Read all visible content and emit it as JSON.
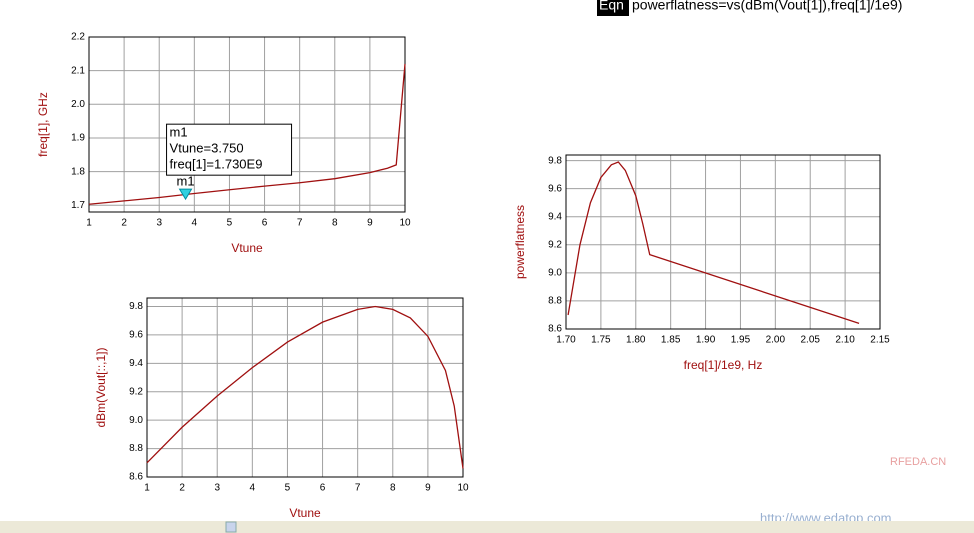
{
  "equation": {
    "tag": "Eqn",
    "text": "powerflatness=vs(dBm(Vout[1]),freq[1]/1e9)"
  },
  "watermark": [
    "RFEDA.CN",
    "http://www.edatop.com"
  ],
  "chart_data": [
    {
      "type": "line",
      "x_label": "Vtune",
      "y_label": "freq[1], GHz",
      "color": "#a01010",
      "grid": true,
      "x": [
        1,
        2,
        3,
        4,
        5,
        6,
        7,
        8,
        9,
        9.5,
        9.75,
        10
      ],
      "values": [
        1.703,
        1.713,
        1.723,
        1.735,
        1.746,
        1.757,
        1.767,
        1.779,
        1.797,
        1.81,
        1.82,
        2.12
      ],
      "xlim": [
        1,
        10
      ],
      "xticks": [
        1,
        2,
        3,
        4,
        5,
        6,
        7,
        8,
        9,
        10
      ],
      "ylim": [
        1.68,
        2.2
      ],
      "yticks": [
        1.7,
        1.8,
        1.9,
        {
          "value": 2,
          "label": "2.0"
        },
        2.1,
        2.2
      ],
      "marker": {
        "label": "m1",
        "readout": [
          "Vtune=3.750",
          "freq[1]=1.730E9"
        ],
        "x": 3.75,
        "y": 1.73
      }
    },
    {
      "type": "line",
      "x_label": "Vtune",
      "y_label": "dBm(Vout[::,1])",
      "color": "#a01010",
      "grid": true,
      "x": [
        1,
        2,
        3,
        4,
        5,
        6,
        7,
        7.5,
        8,
        8.5,
        9,
        9.5,
        9.75,
        10
      ],
      "values": [
        8.7,
        8.95,
        9.17,
        9.37,
        9.55,
        9.69,
        9.78,
        9.8,
        9.78,
        9.72,
        9.59,
        9.35,
        9.1,
        8.66
      ],
      "xlim": [
        1,
        10
      ],
      "xticks": [
        1,
        2,
        3,
        4,
        5,
        6,
        7,
        8,
        9,
        10
      ],
      "ylim": [
        8.6,
        9.86
      ],
      "yticks": [
        8.6,
        8.8,
        {
          "value": 9,
          "label": "9.0"
        },
        9.2,
        9.4,
        9.6,
        9.8
      ]
    },
    {
      "type": "line",
      "x_label": "freq[1]/1e9, Hz",
      "y_label": "powerflatness",
      "color": "#a01010",
      "grid": true,
      "x": [
        1.703,
        1.72,
        1.735,
        1.75,
        1.765,
        1.775,
        1.785,
        1.8,
        1.81,
        1.82,
        2.12
      ],
      "values": [
        8.7,
        9.2,
        9.5,
        9.68,
        9.77,
        9.79,
        9.73,
        9.55,
        9.35,
        9.13,
        8.64
      ],
      "xlim": [
        1.7,
        2.15
      ],
      "xticks": [
        {
          "value": 1.7,
          "label": "1.70"
        },
        1.75,
        {
          "value": 1.8,
          "label": "1.80"
        },
        1.85,
        {
          "value": 1.9,
          "label": "1.90"
        },
        1.95,
        {
          "value": 2,
          "label": "2.00"
        },
        2.05,
        {
          "value": 2.1,
          "label": "2.10"
        },
        2.15
      ],
      "ylim": [
        8.6,
        9.84
      ],
      "yticks": [
        8.6,
        8.8,
        {
          "value": 9,
          "label": "9.0"
        },
        9.2,
        9.4,
        9.6,
        9.8
      ]
    }
  ]
}
